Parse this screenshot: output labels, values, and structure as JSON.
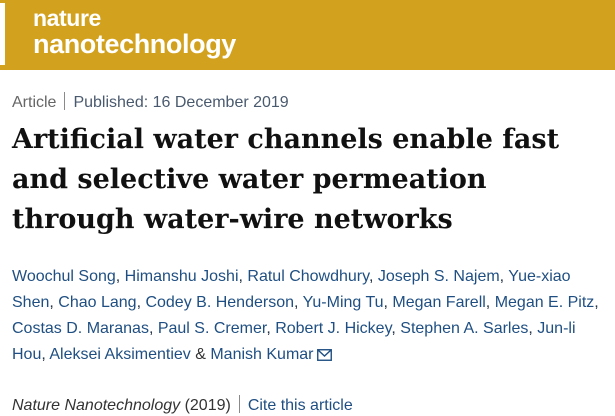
{
  "brand": {
    "line1": "nature",
    "line2": "nanotechnology",
    "header_color": "#d2a11d"
  },
  "meta": {
    "type": "Article",
    "published": "Published: 16 December 2019"
  },
  "title": "Artificial water channels enable fast and selective water permeation through water-wire networks",
  "authors": [
    "Woochul Song",
    "Himanshu Joshi",
    "Ratul Chowdhury",
    "Joseph S. Najem",
    "Yue-xiao Shen",
    "Chao Lang",
    "Codey B. Henderson",
    "Yu-Ming Tu",
    "Megan Farell",
    "Megan E. Pitz",
    "Costas D. Maranas",
    "Paul S. Cremer",
    "Robert J. Hickey",
    "Stephen A. Sarles",
    "Jun-li Hou",
    "Aleksei Aksimentiev",
    "Manish Kumar"
  ],
  "author_joiner": "&",
  "corresponding_icon": "mail-icon",
  "citation": {
    "journal": "Nature Nanotechnology",
    "year": "(2019)",
    "cite_label": "Cite this article"
  }
}
